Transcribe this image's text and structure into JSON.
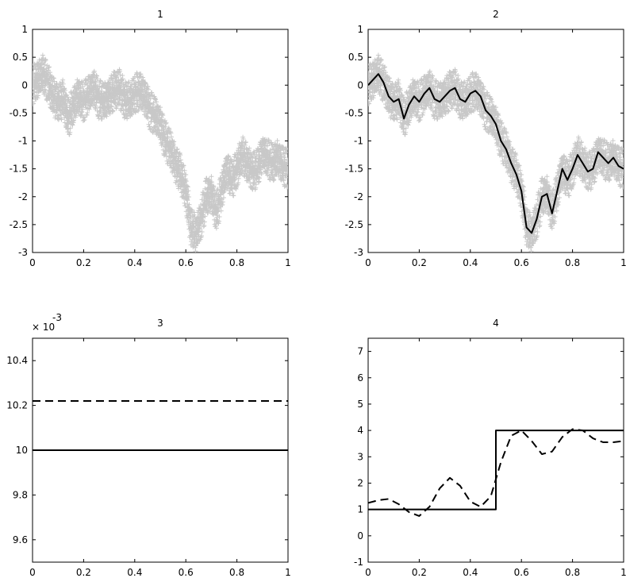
{
  "chart_data": [
    {
      "type": "scatter",
      "title": "1",
      "xlabel": "",
      "ylabel": "",
      "xlim": [
        0,
        1
      ],
      "ylim": [
        -3,
        1
      ],
      "xticks": [
        0,
        0.2,
        0.4,
        0.6,
        0.8,
        1
      ],
      "xticklabels": [
        "0",
        "0.2",
        "0.4",
        "0.6",
        "0.8",
        "1"
      ],
      "yticks": [
        1,
        0.5,
        0,
        -0.5,
        -1,
        -1.5,
        -2,
        -2.5,
        -3
      ],
      "yticklabels": [
        "1",
        "0.5",
        "0",
        "-0.5",
        "-1",
        "-1.5",
        "-2",
        "-2.5",
        "-3"
      ],
      "grid": false,
      "series": [
        {
          "style": "grey plus markers (noisy observations)",
          "color": "#c8c8c8",
          "x": [
            0,
            0.02,
            0.04,
            0.06,
            0.08,
            0.1,
            0.12,
            0.14,
            0.16,
            0.18,
            0.2,
            0.22,
            0.24,
            0.26,
            0.28,
            0.3,
            0.32,
            0.34,
            0.36,
            0.38,
            0.4,
            0.42,
            0.44,
            0.46,
            0.48,
            0.5,
            0.52,
            0.54,
            0.56,
            0.58,
            0.6,
            0.62,
            0.64,
            0.66,
            0.68,
            0.7,
            0.72,
            0.74,
            0.76,
            0.78,
            0.8,
            0.82,
            0.84,
            0.86,
            0.88,
            0.9,
            0.92,
            0.94,
            0.96,
            0.98,
            1
          ],
          "y": [
            0.0,
            0.1,
            0.2,
            0.05,
            -0.2,
            -0.3,
            -0.25,
            -0.6,
            -0.35,
            -0.2,
            -0.3,
            -0.15,
            -0.05,
            -0.25,
            -0.3,
            -0.2,
            -0.1,
            -0.05,
            -0.25,
            -0.3,
            -0.15,
            -0.1,
            -0.2,
            -0.45,
            -0.55,
            -0.7,
            -1.0,
            -1.15,
            -1.4,
            -1.6,
            -1.9,
            -2.55,
            -2.65,
            -2.4,
            -2.0,
            -1.95,
            -2.3,
            -1.9,
            -1.5,
            -1.7,
            -1.5,
            -1.25,
            -1.4,
            -1.55,
            -1.5,
            -1.2,
            -1.3,
            -1.4,
            -1.3,
            -1.45,
            -1.5
          ]
        }
      ]
    },
    {
      "type": "line",
      "title": "2",
      "xlabel": "",
      "ylabel": "",
      "xlim": [
        0,
        1
      ],
      "ylim": [
        -3,
        1
      ],
      "xticks": [
        0,
        0.2,
        0.4,
        0.6,
        0.8,
        1
      ],
      "xticklabels": [
        "0",
        "0.2",
        "0.4",
        "0.6",
        "0.8",
        "1"
      ],
      "yticks": [
        1,
        0.5,
        0,
        -0.5,
        -1,
        -1.5,
        -2,
        -2.5,
        -3
      ],
      "yticklabels": [
        "1",
        "0.5",
        "0",
        "-0.5",
        "-1",
        "-1.5",
        "-2",
        "-2.5",
        "-3"
      ],
      "grid": false,
      "series": [
        {
          "style": "grey plus markers (noisy observations)",
          "color": "#c8c8c8",
          "x": [
            0,
            0.02,
            0.04,
            0.06,
            0.08,
            0.1,
            0.12,
            0.14,
            0.16,
            0.18,
            0.2,
            0.22,
            0.24,
            0.26,
            0.28,
            0.3,
            0.32,
            0.34,
            0.36,
            0.38,
            0.4,
            0.42,
            0.44,
            0.46,
            0.48,
            0.5,
            0.52,
            0.54,
            0.56,
            0.58,
            0.6,
            0.62,
            0.64,
            0.66,
            0.68,
            0.7,
            0.72,
            0.74,
            0.76,
            0.78,
            0.8,
            0.82,
            0.84,
            0.86,
            0.88,
            0.9,
            0.92,
            0.94,
            0.96,
            0.98,
            1
          ],
          "y": [
            0.0,
            0.1,
            0.2,
            0.05,
            -0.2,
            -0.3,
            -0.25,
            -0.6,
            -0.35,
            -0.2,
            -0.3,
            -0.15,
            -0.05,
            -0.25,
            -0.3,
            -0.2,
            -0.1,
            -0.05,
            -0.25,
            -0.3,
            -0.15,
            -0.1,
            -0.2,
            -0.45,
            -0.55,
            -0.7,
            -1.0,
            -1.15,
            -1.4,
            -1.6,
            -1.9,
            -2.55,
            -2.65,
            -2.4,
            -2.0,
            -1.95,
            -2.3,
            -1.9,
            -1.5,
            -1.7,
            -1.5,
            -1.25,
            -1.4,
            -1.55,
            -1.5,
            -1.2,
            -1.3,
            -1.4,
            -1.3,
            -1.45,
            -1.5
          ]
        },
        {
          "style": "black solid line (estimate)",
          "color": "#000000",
          "x": [
            0,
            0.02,
            0.04,
            0.06,
            0.08,
            0.1,
            0.12,
            0.14,
            0.16,
            0.18,
            0.2,
            0.22,
            0.24,
            0.26,
            0.28,
            0.3,
            0.32,
            0.34,
            0.36,
            0.38,
            0.4,
            0.42,
            0.44,
            0.46,
            0.48,
            0.5,
            0.52,
            0.54,
            0.56,
            0.58,
            0.6,
            0.62,
            0.64,
            0.66,
            0.68,
            0.7,
            0.72,
            0.74,
            0.76,
            0.78,
            0.8,
            0.82,
            0.84,
            0.86,
            0.88,
            0.9,
            0.92,
            0.94,
            0.96,
            0.98,
            1
          ],
          "y": [
            0.0,
            0.1,
            0.2,
            0.05,
            -0.2,
            -0.3,
            -0.25,
            -0.6,
            -0.35,
            -0.2,
            -0.3,
            -0.15,
            -0.05,
            -0.25,
            -0.3,
            -0.2,
            -0.1,
            -0.05,
            -0.25,
            -0.3,
            -0.15,
            -0.1,
            -0.2,
            -0.45,
            -0.55,
            -0.7,
            -1.0,
            -1.15,
            -1.4,
            -1.6,
            -1.9,
            -2.55,
            -2.65,
            -2.4,
            -2.0,
            -1.95,
            -2.3,
            -1.9,
            -1.5,
            -1.7,
            -1.5,
            -1.25,
            -1.4,
            -1.55,
            -1.5,
            -1.2,
            -1.3,
            -1.4,
            -1.3,
            -1.45,
            -1.5
          ]
        }
      ]
    },
    {
      "type": "line",
      "title": "3",
      "xlabel": "",
      "ylabel": "",
      "axis_multiplier": {
        "base": "× 10",
        "exponent": "-3"
      },
      "xlim": [
        0,
        1
      ],
      "ylim": [
        9.5,
        10.5
      ],
      "xticks": [
        0,
        0.2,
        0.4,
        0.6,
        0.8,
        1
      ],
      "xticklabels": [
        "0",
        "0.2",
        "0.4",
        "0.6",
        "0.8",
        "1"
      ],
      "yticks": [
        10.4,
        10.2,
        10,
        9.8,
        9.6
      ],
      "yticklabels": [
        "10.4",
        "10.2",
        "10",
        "9.8",
        "9.6"
      ],
      "grid": false,
      "series": [
        {
          "style": "black solid line",
          "color": "#000000",
          "dash": false,
          "x": [
            0,
            1
          ],
          "y": [
            10,
            10
          ]
        },
        {
          "style": "black dashed line",
          "color": "#000000",
          "dash": true,
          "x": [
            0,
            1
          ],
          "y": [
            10.22,
            10.22
          ]
        }
      ]
    },
    {
      "type": "line",
      "title": "4",
      "xlabel": "",
      "ylabel": "",
      "xlim": [
        0,
        1
      ],
      "ylim": [
        -1,
        7.5
      ],
      "xticks": [
        0,
        0.2,
        0.4,
        0.6,
        0.8,
        1
      ],
      "xticklabels": [
        "0",
        "0.2",
        "0.4",
        "0.6",
        "0.8",
        "1"
      ],
      "yticks": [
        7,
        6,
        5,
        4,
        3,
        2,
        1,
        0,
        -1
      ],
      "yticklabels": [
        "7",
        "6",
        "5",
        "4",
        "3",
        "2",
        "1",
        "0",
        "-1"
      ],
      "grid": false,
      "series": [
        {
          "style": "black solid step line",
          "color": "#000000",
          "dash": false,
          "x": [
            0,
            0.5,
            0.5,
            1
          ],
          "y": [
            1,
            1,
            4,
            4
          ]
        },
        {
          "style": "black dashed line",
          "color": "#000000",
          "dash": true,
          "x": [
            0,
            0.04,
            0.08,
            0.12,
            0.16,
            0.2,
            0.24,
            0.28,
            0.32,
            0.36,
            0.4,
            0.44,
            0.48,
            0.52,
            0.56,
            0.6,
            0.64,
            0.68,
            0.72,
            0.76,
            0.8,
            0.84,
            0.88,
            0.92,
            0.96,
            1
          ],
          "y": [
            1.25,
            1.35,
            1.4,
            1.2,
            0.9,
            0.75,
            1.1,
            1.8,
            2.2,
            1.9,
            1.3,
            1.1,
            1.5,
            2.8,
            3.8,
            4.0,
            3.6,
            3.1,
            3.2,
            3.75,
            4.05,
            4.0,
            3.7,
            3.55,
            3.55,
            3.6
          ]
        }
      ]
    }
  ]
}
